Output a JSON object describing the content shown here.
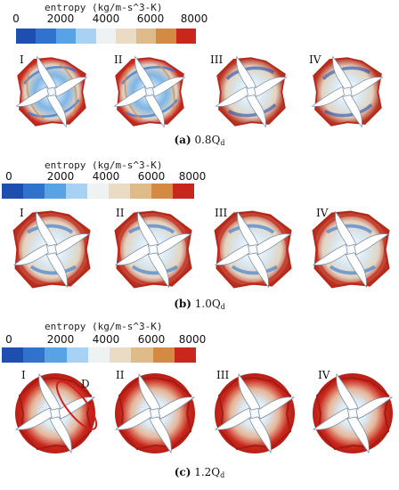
{
  "colorbar": {
    "title": "entropy (kg/m-s^3-K)",
    "ticks": [
      "0",
      "2000",
      "4000",
      "6000",
      "8000"
    ],
    "colors": [
      "#1e4fb0",
      "#2f73cf",
      "#58a2e6",
      "#a7d2f3",
      "#eef2f2",
      "#eadcc4",
      "#dfbb8a",
      "#d58a43",
      "#c9271b"
    ]
  },
  "labels": [
    "I",
    "II",
    "III",
    "IV"
  ],
  "panels": [
    {
      "caption_letter": "(a)",
      "caption_value": "0.8Q",
      "caption_sub": "d"
    },
    {
      "caption_letter": "(b)",
      "caption_value": "1.0Q",
      "caption_sub": "d"
    },
    {
      "caption_letter": "(c)",
      "caption_value": "1.2Q",
      "caption_sub": "d"
    }
  ],
  "annotation": "D"
}
